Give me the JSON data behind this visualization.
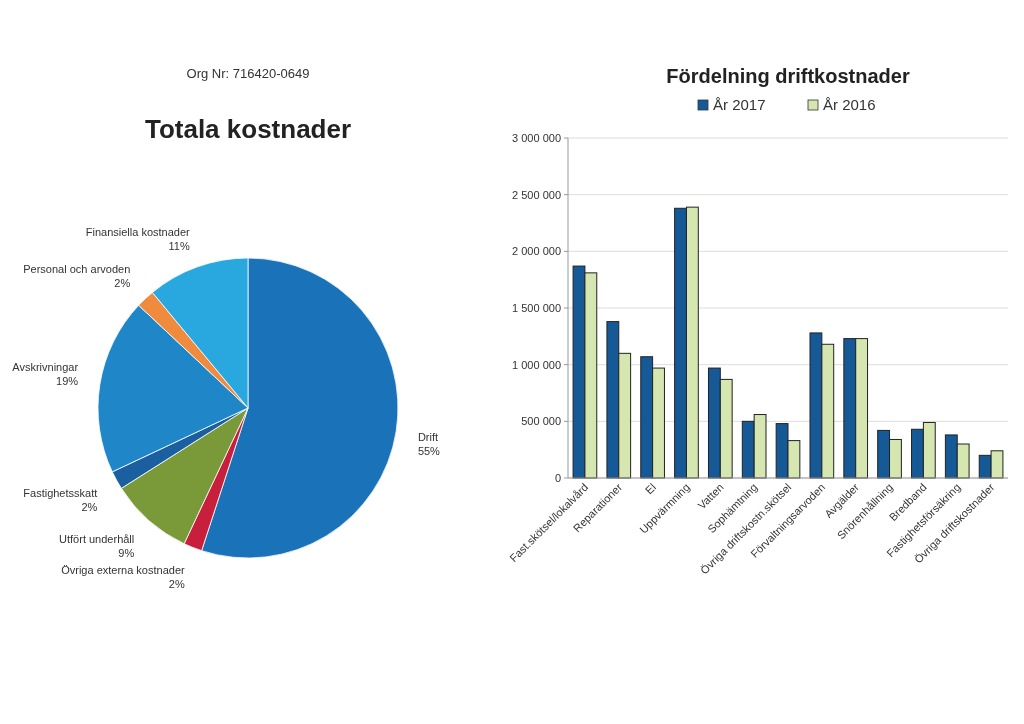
{
  "chart_data": [
    {
      "type": "pie",
      "title": "Totala kostnader",
      "annotations": [
        "Org Nr: 716420-0649"
      ],
      "categories": [
        "Drift",
        "Övriga externa kostnader",
        "Utfört underhåll",
        "Fastighetsskatt",
        "Avskrivningar",
        "Personal och arvoden",
        "Finansiella kostnader"
      ],
      "values": [
        55,
        2,
        9,
        2,
        19,
        2,
        11
      ],
      "value_labels": [
        "55%",
        "2%",
        "9%",
        "2%",
        "19%",
        "2%",
        "11%"
      ],
      "colors": [
        "#1a72b8",
        "#c8203c",
        "#7a9a3a",
        "#1a5fa0",
        "#1f86c8",
        "#f08a3c",
        "#29a8e0"
      ]
    },
    {
      "type": "bar",
      "title": "Fördelning driftkostnader",
      "categories": [
        "Fast.skötsel/lokalvård",
        "Reparationer",
        "El",
        "Uppvärmning",
        "Vatten",
        "Sophämtning",
        "Övriga driftskostn.skötsel",
        "Förvaltningsarvoden",
        "Avgälder",
        "Snörenhållning",
        "Bredband",
        "Fastighetsförsäkring",
        "Övriga driftskostnader"
      ],
      "series": [
        {
          "name": "År 2017",
          "color": "#155a96",
          "values": [
            1870000,
            1380000,
            1070000,
            2380000,
            970000,
            500000,
            480000,
            1280000,
            1230000,
            420000,
            430000,
            380000,
            200000
          ]
        },
        {
          "name": "År 2016",
          "color": "#d5e6b0",
          "values": [
            1810000,
            1100000,
            970000,
            2390000,
            870000,
            560000,
            330000,
            1180000,
            1230000,
            340000,
            490000,
            300000,
            240000
          ]
        }
      ],
      "ylim": [
        0,
        3000000
      ],
      "yticks": [
        0,
        {
          "value": 500000,
          "label": "500 000"
        },
        {
          "value": 1000000,
          "label": "1 000 000"
        },
        {
          "value": 1500000,
          "label": "1 500 000"
        },
        {
          "value": 2000000,
          "label": "2 000 000"
        },
        {
          "value": 2500000,
          "label": "2 500 000"
        },
        {
          "value": 3000000,
          "label": "3 000 000"
        }
      ],
      "grid": "y",
      "legend": "top"
    }
  ]
}
